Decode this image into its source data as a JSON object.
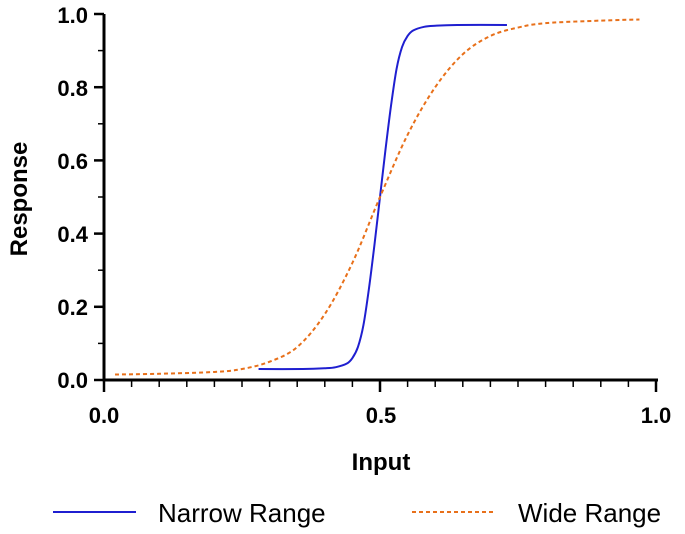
{
  "chart_data": {
    "type": "line",
    "title": "",
    "xlabel": "Input",
    "ylabel": "Response",
    "xlim": [
      0.0,
      1.0
    ],
    "ylim": [
      0.0,
      1.0
    ],
    "x_ticks": [
      "0.0",
      "0.5",
      "1.0"
    ],
    "y_ticks": [
      "0.0",
      "0.2",
      "0.4",
      "0.6",
      "0.8",
      "1.0"
    ],
    "grid": false,
    "legend_position": "bottom",
    "series": [
      {
        "name": "Narrow Range",
        "style": "solid",
        "color": "#1f1fd0",
        "x": [
          0.28,
          0.36,
          0.4,
          0.42,
          0.44,
          0.45,
          0.46,
          0.47,
          0.48,
          0.49,
          0.5,
          0.51,
          0.52,
          0.53,
          0.54,
          0.55,
          0.56,
          0.58,
          0.6,
          0.64,
          0.73
        ],
        "y": [
          0.03,
          0.03,
          0.032,
          0.035,
          0.045,
          0.06,
          0.09,
          0.15,
          0.25,
          0.37,
          0.5,
          0.63,
          0.75,
          0.85,
          0.91,
          0.94,
          0.955,
          0.965,
          0.968,
          0.97,
          0.97
        ]
      },
      {
        "name": "Wide Range",
        "style": "dashed",
        "color": "#e8701a",
        "x": [
          0.02,
          0.1,
          0.2,
          0.25,
          0.3,
          0.35,
          0.4,
          0.45,
          0.5,
          0.55,
          0.6,
          0.65,
          0.7,
          0.75,
          0.8,
          0.9,
          0.97
        ],
        "y": [
          0.015,
          0.017,
          0.022,
          0.03,
          0.05,
          0.09,
          0.18,
          0.32,
          0.5,
          0.67,
          0.8,
          0.89,
          0.94,
          0.963,
          0.975,
          0.982,
          0.985
        ]
      }
    ]
  }
}
